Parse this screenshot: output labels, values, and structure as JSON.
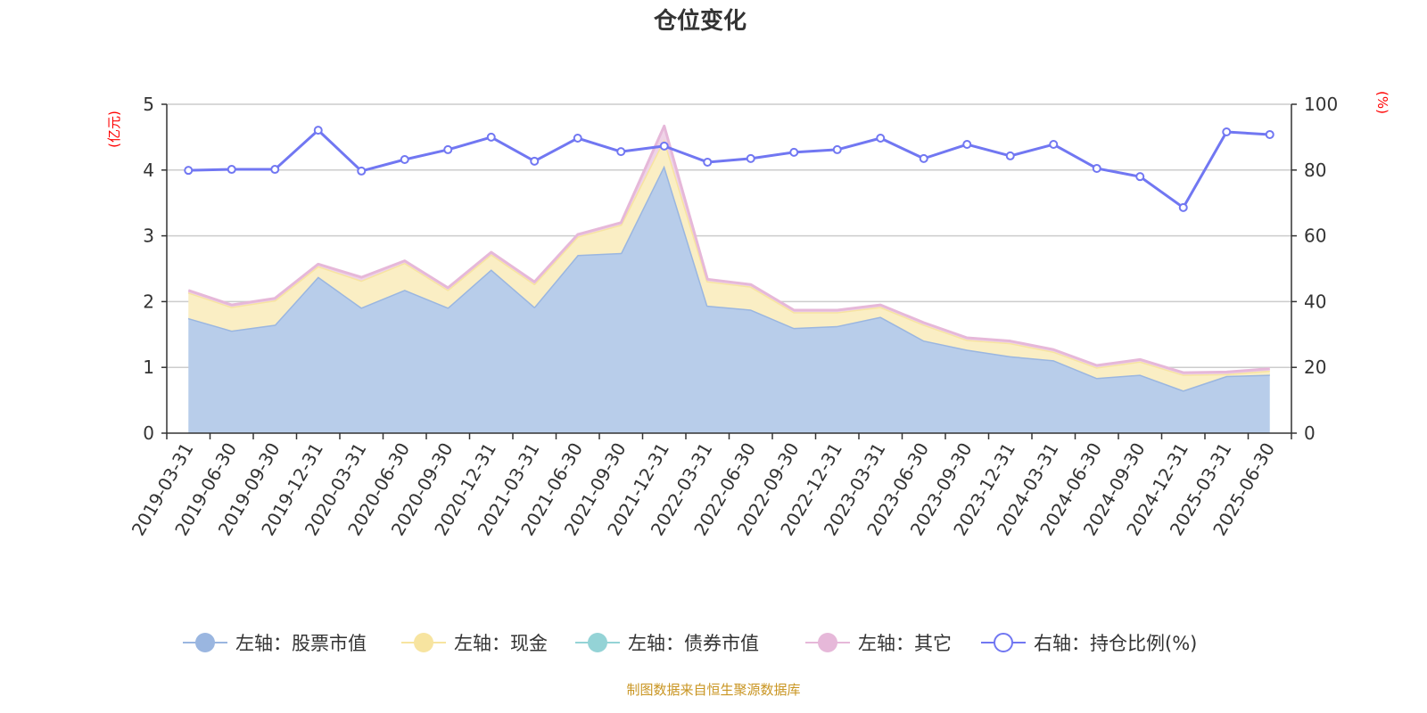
{
  "chart_data": {
    "type": "area",
    "title": "仓位变化",
    "left_axis": {
      "label": "(亿元)",
      "ylim": [
        0,
        5
      ],
      "ticks": [
        0,
        1,
        2,
        3,
        4,
        5
      ]
    },
    "right_axis": {
      "label": "(%)",
      "ylim": [
        0,
        100
      ],
      "ticks": [
        0,
        20,
        40,
        60,
        80,
        100
      ]
    },
    "grid": true,
    "legend_position": "bottom",
    "categories": [
      "2019-03-31",
      "2019-06-30",
      "2019-09-30",
      "2019-12-31",
      "2020-03-31",
      "2020-06-30",
      "2020-09-30",
      "2020-12-31",
      "2021-03-31",
      "2021-06-30",
      "2021-09-30",
      "2021-12-31",
      "2022-03-31",
      "2022-06-30",
      "2022-09-30",
      "2022-12-31",
      "2023-03-31",
      "2023-06-30",
      "2023-09-30",
      "2023-12-31",
      "2024-03-31",
      "2024-06-30",
      "2024-09-30",
      "2024-12-31",
      "2025-03-31",
      "2025-06-30"
    ],
    "series": [
      {
        "name": "左轴：股票市值",
        "axis": "left",
        "stacked": true,
        "color": "#9ab6e0",
        "fill": "#b8cdea",
        "values": [
          1.75,
          1.56,
          1.65,
          2.38,
          1.91,
          2.18,
          1.91,
          2.49,
          1.92,
          2.71,
          2.74,
          4.07,
          1.94,
          1.88,
          1.6,
          1.63,
          1.77,
          1.41,
          1.27,
          1.17,
          1.11,
          0.84,
          0.89,
          0.65,
          0.87,
          0.89
        ]
      },
      {
        "name": "左轴：现金",
        "axis": "left",
        "stacked": true,
        "color": "#f7e4a0",
        "fill": "#faeec4",
        "values": [
          0.39,
          0.36,
          0.37,
          0.16,
          0.41,
          0.41,
          0.27,
          0.23,
          0.35,
          0.28,
          0.43,
          0.4,
          0.37,
          0.35,
          0.24,
          0.21,
          0.15,
          0.24,
          0.15,
          0.2,
          0.13,
          0.16,
          0.2,
          0.24,
          0.03,
          0.06
        ]
      },
      {
        "name": "左轴：债券市值",
        "axis": "left",
        "stacked": true,
        "color": "#94d3d6",
        "fill": "#bfe5e6",
        "values": [
          0,
          0,
          0,
          0,
          0,
          0,
          0,
          0,
          0,
          0,
          0,
          0,
          0,
          0,
          0,
          0,
          0,
          0,
          0,
          0,
          0,
          0,
          0,
          0,
          0,
          0
        ]
      },
      {
        "name": "左轴：其它",
        "axis": "left",
        "stacked": true,
        "color": "#e6b8d9",
        "fill": "#efd3e7",
        "values": [
          0.03,
          0.03,
          0.03,
          0.03,
          0.05,
          0.03,
          0.03,
          0.03,
          0.03,
          0.03,
          0.03,
          0.2,
          0.03,
          0.03,
          0.03,
          0.03,
          0.03,
          0.03,
          0.03,
          0.03,
          0.03,
          0.03,
          0.03,
          0.03,
          0.03,
          0.03
        ]
      },
      {
        "name": "右轴：持仓比例(%)",
        "axis": "right",
        "type": "line",
        "color": "#7177f2",
        "values": [
          79.9,
          80.2,
          80.2,
          92.1,
          79.7,
          83.2,
          86.2,
          90.0,
          82.7,
          89.7,
          85.6,
          87.3,
          82.4,
          83.5,
          85.4,
          86.2,
          89.7,
          83.5,
          87.8,
          84.3,
          87.8,
          80.5,
          78.0,
          68.6,
          91.6,
          90.8
        ]
      }
    ]
  },
  "footer": {
    "source": "制图数据来自恒生聚源数据库"
  },
  "colors": {
    "axis_label": "#ff0000",
    "footer": "#c99522",
    "grid": "#cccccc"
  }
}
